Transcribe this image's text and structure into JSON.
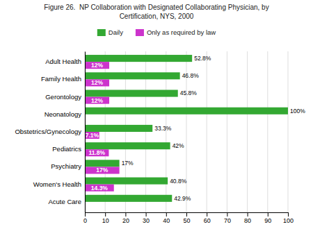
{
  "chart_data": {
    "type": "bar",
    "orientation": "horizontal",
    "title": "Figure 26.  NP Collaboration with Designated Collaborating Physician, by",
    "subtitle": "Certification, NYS, 2000",
    "categories": [
      "Adult Health",
      "Family Health",
      "Gerontology",
      "Neonatology",
      "Obstetrics/Gynecology",
      "Pediatrics",
      "Psychiatry",
      "Women's Health",
      "Acute Care"
    ],
    "series": [
      {
        "name": "Daily",
        "color": "#33a832",
        "values": [
          52.8,
          46.8,
          45.8,
          100.0,
          33.3,
          42.0,
          17.0,
          40.8,
          42.9
        ],
        "value_labels": [
          "52.8%",
          "46.8%",
          "45.8%",
          "100%",
          "33.3%",
          "42%",
          "17%",
          "40.8%",
          "42.9%"
        ]
      },
      {
        "name": "Only as required by law",
        "color": "#cc33cc",
        "values": [
          12.0,
          12.0,
          12.0,
          0.0,
          7.1,
          11.8,
          17.0,
          14.3,
          0.0
        ],
        "value_labels": [
          "12%",
          "12%",
          "12%",
          null,
          "7.1%",
          "11.8%",
          "17%",
          "14.3%",
          null
        ]
      }
    ],
    "xlim": [
      0,
      100
    ],
    "xticks": [
      0,
      10,
      20,
      30,
      40,
      50,
      60,
      70,
      80,
      90,
      100
    ],
    "grid": true,
    "legend": "top",
    "data_labels": true
  }
}
